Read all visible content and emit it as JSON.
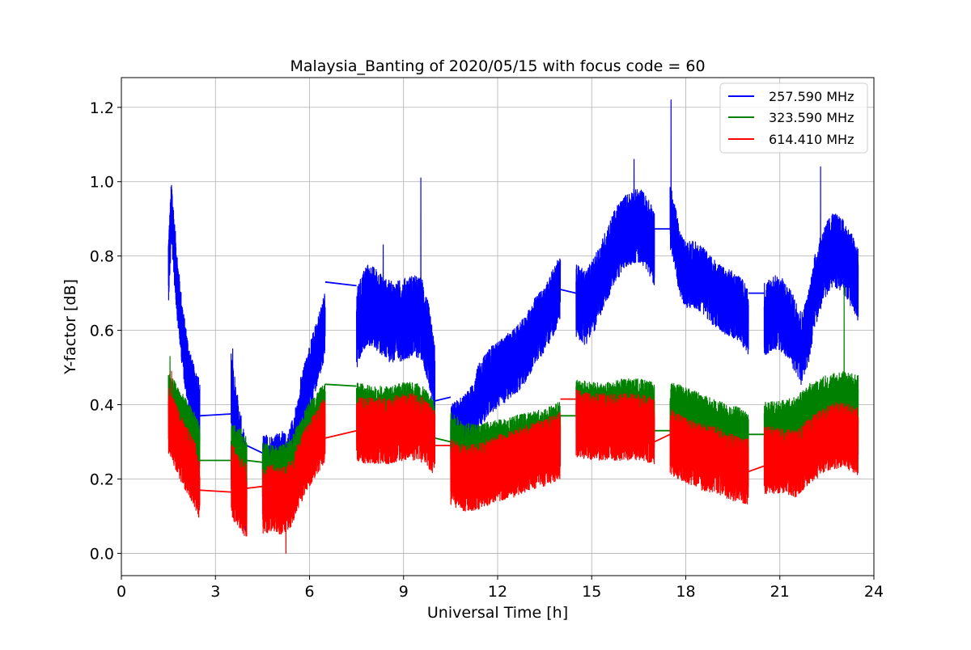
{
  "chart_data": {
    "type": "line",
    "title": "Malaysia_Banting of 2020/05/15 with focus code = 60",
    "xlabel": "Universal Time [h]",
    "ylabel": "Y-factor [dB]",
    "xlim": [
      0,
      24
    ],
    "ylim": [
      -0.06,
      1.28
    ],
    "xticks": [
      0,
      3,
      6,
      9,
      12,
      15,
      18,
      21,
      24
    ],
    "xtick_labels": [
      "0",
      "3",
      "6",
      "9",
      "12",
      "15",
      "18",
      "21",
      "24"
    ],
    "yticks": [
      0.0,
      0.2,
      0.4,
      0.6,
      0.8,
      1.0,
      1.2
    ],
    "ytick_labels": [
      "0.0",
      "0.2",
      "0.4",
      "0.6",
      "0.8",
      "1.0",
      "1.2"
    ],
    "grid": true,
    "legend_position": "top-right",
    "series": [
      {
        "name": "257.590 MHz",
        "color": "#0000ff",
        "segments": [
          {
            "x": [
              1.5,
              1.55,
              1.6,
              1.7,
              1.8,
              1.9,
              2.0,
              2.1,
              2.2,
              2.3,
              2.4,
              2.5
            ],
            "y": [
              0.76,
              0.84,
              0.92,
              0.8,
              0.7,
              0.62,
              0.55,
              0.5,
              0.45,
              0.42,
              0.4,
              0.38
            ],
            "noise": 0.09
          },
          {
            "x": [
              3.5,
              3.6,
              3.7,
              3.8,
              3.9,
              4.0
            ],
            "y": [
              0.42,
              0.36,
              0.3,
              0.25,
              0.2,
              0.17
            ],
            "noise": 0.13
          },
          {
            "x": [
              4.5,
              4.7,
              4.9,
              5.1,
              5.3,
              5.5,
              5.7
            ],
            "y": [
              0.22,
              0.22,
              0.22,
              0.23,
              0.22,
              0.28,
              0.33
            ],
            "noise": 0.1
          },
          {
            "x": [
              5.7,
              5.9,
              6.1,
              6.3,
              6.5
            ],
            "y": [
              0.38,
              0.44,
              0.5,
              0.56,
              0.62
            ],
            "noise": 0.09
          },
          {
            "x": [
              7.5,
              7.8,
              8.1,
              8.4,
              8.7,
              9.0,
              9.3,
              9.6,
              9.8,
              10.0
            ],
            "y": [
              0.6,
              0.67,
              0.66,
              0.63,
              0.62,
              0.63,
              0.64,
              0.63,
              0.56,
              0.45
            ],
            "noise": 0.11
          },
          {
            "x": [
              10.5,
              10.8,
              11.1,
              11.4,
              11.7,
              12.0,
              12.3,
              12.6,
              12.9,
              13.2,
              13.5,
              13.8,
              14.0
            ],
            "y": [
              0.31,
              0.33,
              0.35,
              0.42,
              0.46,
              0.48,
              0.5,
              0.52,
              0.55,
              0.6,
              0.63,
              0.68,
              0.72
            ],
            "noise": 0.09
          },
          {
            "x": [
              14.5,
              14.8,
              15.1,
              15.4,
              15.7,
              16.0,
              16.3,
              16.6,
              16.9,
              17.0
            ],
            "y": [
              0.68,
              0.66,
              0.7,
              0.76,
              0.82,
              0.86,
              0.88,
              0.88,
              0.84,
              0.82
            ],
            "noise": 0.1
          },
          {
            "x": [
              17.5,
              17.6,
              17.8,
              18.0,
              18.3,
              18.6,
              18.9,
              19.2,
              19.5,
              19.8,
              20.0
            ],
            "y": [
              0.9,
              0.88,
              0.78,
              0.75,
              0.75,
              0.73,
              0.7,
              0.68,
              0.67,
              0.65,
              0.62
            ],
            "noise": 0.09
          },
          {
            "x": [
              20.5,
              20.8,
              21.1,
              21.4,
              21.7,
              21.9,
              22.1,
              22.4,
              22.7,
              23.0,
              23.3,
              23.5
            ],
            "y": [
              0.63,
              0.65,
              0.64,
              0.6,
              0.55,
              0.6,
              0.7,
              0.78,
              0.82,
              0.8,
              0.76,
              0.72
            ],
            "noise": 0.1
          }
        ],
        "bridges": [
          {
            "x": [
              2.5,
              3.5
            ],
            "y": [
              0.37,
              0.375
            ]
          },
          {
            "x": [
              4.0,
              4.5
            ],
            "y": [
              0.29,
              0.27
            ]
          },
          {
            "x": [
              6.5,
              7.0,
              7.5
            ],
            "y": [
              0.73,
              0.725,
              0.72
            ]
          },
          {
            "x": [
              10.0,
              10.5
            ],
            "y": [
              0.41,
              0.42
            ]
          },
          {
            "x": [
              14.0,
              14.5
            ],
            "y": [
              0.71,
              0.7
            ]
          },
          {
            "x": [
              17.0,
              17.5
            ],
            "y": [
              0.873,
              0.873
            ]
          },
          {
            "x": [
              20.0,
              20.5
            ],
            "y": [
              0.7,
              0.7
            ]
          }
        ],
        "spikes": [
          {
            "x": 1.6,
            "y": 0.99
          },
          {
            "x": 3.55,
            "y": 0.55
          },
          {
            "x": 8.35,
            "y": 0.83
          },
          {
            "x": 9.55,
            "y": 1.01
          },
          {
            "x": 16.35,
            "y": 1.06
          },
          {
            "x": 17.53,
            "y": 1.22
          },
          {
            "x": 22.3,
            "y": 1.04
          }
        ]
      },
      {
        "name": "323.590 MHz",
        "color": "#008000",
        "segments": [
          {
            "x": [
              1.5,
              1.8,
              2.1,
              2.4,
              2.5
            ],
            "y": [
              0.42,
              0.38,
              0.34,
              0.3,
              0.28
            ],
            "noise": 0.07
          },
          {
            "x": [
              3.5,
              3.7,
              3.9,
              4.0
            ],
            "y": [
              0.26,
              0.25,
              0.24,
              0.23
            ],
            "noise": 0.09
          },
          {
            "x": [
              4.5,
              4.8,
              5.1,
              5.4,
              5.7,
              6.0,
              6.3,
              6.5
            ],
            "y": [
              0.22,
              0.21,
              0.21,
              0.23,
              0.28,
              0.33,
              0.36,
              0.38
            ],
            "noise": 0.08
          },
          {
            "x": [
              7.5,
              8.0,
              8.5,
              9.0,
              9.5,
              10.0
            ],
            "y": [
              0.38,
              0.37,
              0.37,
              0.38,
              0.38,
              0.33
            ],
            "noise": 0.08
          },
          {
            "x": [
              10.5,
              11.0,
              11.5,
              12.0,
              12.5,
              13.0,
              13.5,
              14.0
            ],
            "y": [
              0.3,
              0.27,
              0.27,
              0.28,
              0.29,
              0.3,
              0.31,
              0.33
            ],
            "noise": 0.08
          },
          {
            "x": [
              14.5,
              15.0,
              15.5,
              16.0,
              16.5,
              17.0
            ],
            "y": [
              0.4,
              0.39,
              0.39,
              0.4,
              0.4,
              0.39
            ],
            "noise": 0.07
          },
          {
            "x": [
              17.5,
              18.0,
              18.5,
              19.0,
              19.5,
              20.0
            ],
            "y": [
              0.38,
              0.37,
              0.35,
              0.33,
              0.32,
              0.3
            ],
            "noise": 0.08
          },
          {
            "x": [
              20.5,
              21.0,
              21.5,
              22.0,
              22.5,
              23.0,
              23.5
            ],
            "y": [
              0.33,
              0.33,
              0.34,
              0.38,
              0.4,
              0.41,
              0.4
            ],
            "noise": 0.08
          }
        ],
        "bridges": [
          {
            "x": [
              2.5,
              3.5
            ],
            "y": [
              0.25,
              0.25
            ]
          },
          {
            "x": [
              4.0,
              4.5
            ],
            "y": [
              0.25,
              0.245
            ]
          },
          {
            "x": [
              6.5,
              7.5
            ],
            "y": [
              0.455,
              0.45
            ]
          },
          {
            "x": [
              10.0,
              10.5
            ],
            "y": [
              0.31,
              0.3
            ]
          },
          {
            "x": [
              14.0,
              14.5
            ],
            "y": [
              0.37,
              0.37
            ]
          },
          {
            "x": [
              17.0,
              17.5
            ],
            "y": [
              0.33,
              0.33
            ]
          },
          {
            "x": [
              20.0,
              20.5
            ],
            "y": [
              0.32,
              0.32
            ]
          }
        ],
        "spikes": [
          {
            "x": 1.55,
            "y": 0.53
          },
          {
            "x": 23.05,
            "y": 0.72
          }
        ]
      },
      {
        "name": "614.410 MHz",
        "color": "#ff0000",
        "segments": [
          {
            "x": [
              1.5,
              1.8,
              2.1,
              2.4,
              2.5
            ],
            "y": [
              0.36,
              0.3,
              0.25,
              0.2,
              0.16
            ],
            "noise": 0.09
          },
          {
            "x": [
              3.5,
              3.7,
              3.9,
              4.0
            ],
            "y": [
              0.2,
              0.17,
              0.15,
              0.14
            ],
            "noise": 0.1
          },
          {
            "x": [
              4.5,
              4.8,
              5.1,
              5.4,
              5.7,
              6.0,
              6.3,
              6.5
            ],
            "y": [
              0.14,
              0.15,
              0.14,
              0.16,
              0.22,
              0.27,
              0.31,
              0.33
            ],
            "noise": 0.09
          },
          {
            "x": [
              7.5,
              8.0,
              8.5,
              9.0,
              9.5,
              10.0
            ],
            "y": [
              0.33,
              0.33,
              0.33,
              0.34,
              0.34,
              0.3
            ],
            "noise": 0.09
          },
          {
            "x": [
              10.5,
              11.0,
              11.5,
              12.0,
              12.5,
              13.0,
              13.5,
              14.0
            ],
            "y": [
              0.22,
              0.2,
              0.21,
              0.23,
              0.24,
              0.26,
              0.27,
              0.29
            ],
            "noise": 0.09
          },
          {
            "x": [
              14.5,
              15.0,
              15.5,
              16.0,
              16.5,
              17.0
            ],
            "y": [
              0.35,
              0.34,
              0.34,
              0.34,
              0.34,
              0.33
            ],
            "noise": 0.09
          },
          {
            "x": [
              17.5,
              18.0,
              18.5,
              19.0,
              19.5,
              20.0
            ],
            "y": [
              0.3,
              0.28,
              0.26,
              0.25,
              0.23,
              0.22
            ],
            "noise": 0.09
          },
          {
            "x": [
              20.5,
              21.0,
              21.5,
              22.0,
              22.5,
              23.0,
              23.5
            ],
            "y": [
              0.25,
              0.25,
              0.24,
              0.28,
              0.31,
              0.32,
              0.3
            ],
            "noise": 0.09
          }
        ],
        "bridges": [
          {
            "x": [
              2.5,
              3.5
            ],
            "y": [
              0.17,
              0.165
            ]
          },
          {
            "x": [
              4.0,
              4.5
            ],
            "y": [
              0.175,
              0.18
            ]
          },
          {
            "x": [
              6.5,
              7.5
            ],
            "y": [
              0.31,
              0.33
            ]
          },
          {
            "x": [
              10.0,
              10.5
            ],
            "y": [
              0.29,
              0.29
            ]
          },
          {
            "x": [
              14.0,
              14.5
            ],
            "y": [
              0.415,
              0.415
            ]
          },
          {
            "x": [
              17.0,
              17.5
            ],
            "y": [
              0.3,
              0.32
            ]
          },
          {
            "x": [
              20.0,
              20.5
            ],
            "y": [
              0.22,
              0.235
            ]
          }
        ],
        "spikes": [
          {
            "x": 1.6,
            "y": 0.49
          },
          {
            "x": 5.25,
            "y": 0.0
          }
        ]
      }
    ]
  }
}
